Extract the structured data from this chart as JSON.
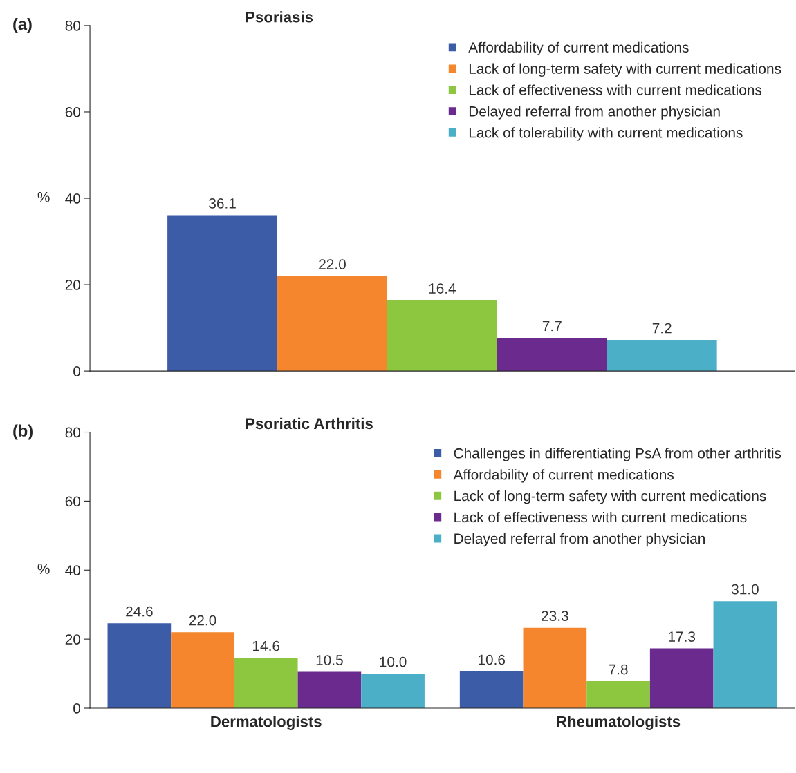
{
  "chart_data": [
    {
      "type": "bar",
      "title": "Psoriasis",
      "ylabel": "%",
      "annotations": [
        "(a)"
      ],
      "categories": [
        null
      ],
      "ylim": [
        0,
        80
      ],
      "yticks": [
        0,
        20,
        40,
        60,
        80
      ],
      "legend": "top right",
      "grid": false,
      "series": [
        {
          "name": "Affordability of current medications",
          "color": "#3d5ca8",
          "values": [
            36.1
          ],
          "value_labels": [
            "36.1"
          ]
        },
        {
          "name": "Lack of long-term safety with current medications",
          "color": "#f5862d",
          "values": [
            22.0
          ],
          "value_labels": [
            "22.0"
          ]
        },
        {
          "name": "Lack of effectiveness with current medications",
          "color": "#8dc63f",
          "values": [
            16.4
          ],
          "value_labels": [
            "16.4"
          ]
        },
        {
          "name": "Delayed referral from another physician",
          "color": "#6a2a8e",
          "values": [
            7.7
          ],
          "value_labels": [
            "7.7"
          ]
        },
        {
          "name": "Lack of tolerability with current medications",
          "color": "#4bafc8",
          "values": [
            7.2
          ],
          "value_labels": [
            "7.2"
          ]
        }
      ]
    },
    {
      "type": "bar",
      "title": "Psoriatic Arthritis",
      "ylabel": "%",
      "annotations": [
        "(b)"
      ],
      "categories": [
        "Dermatologists",
        "Rheumatologists"
      ],
      "ylim": [
        0,
        80
      ],
      "yticks": [
        0,
        20,
        40,
        60,
        80
      ],
      "legend": "top right",
      "grid": false,
      "series": [
        {
          "name": "Challenges in differentiating PsA from other arthritis",
          "color": "#3d5ca8",
          "values": [
            24.6,
            10.6
          ],
          "value_labels": [
            "24.6",
            "10.6"
          ]
        },
        {
          "name": "Affordability of current medications",
          "color": "#f5862d",
          "values": [
            22.0,
            23.3
          ],
          "value_labels": [
            "22.0",
            "23.3"
          ]
        },
        {
          "name": "Lack of long-term safety with current medications",
          "color": "#8dc63f",
          "values": [
            14.6,
            7.8
          ],
          "value_labels": [
            "14.6",
            "7.8"
          ]
        },
        {
          "name": "Lack of effectiveness with current medications",
          "color": "#6a2a8e",
          "values": [
            10.5,
            17.3
          ],
          "value_labels": [
            "10.5",
            "17.3"
          ]
        },
        {
          "name": "Delayed referral from another physician",
          "color": "#4bafc8",
          "values": [
            10.0,
            31.0
          ],
          "value_labels": [
            "10.0",
            "31.0"
          ]
        }
      ]
    }
  ]
}
